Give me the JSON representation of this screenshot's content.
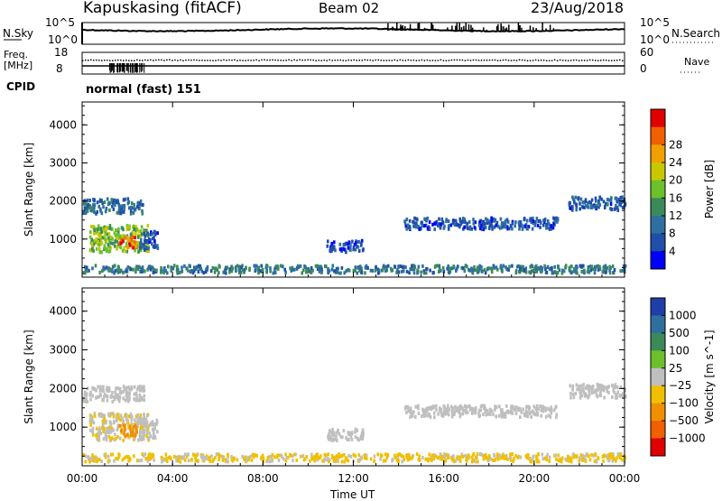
{
  "header": {
    "site": "Kapuskasing (fitACF)",
    "beam": "Beam 02",
    "date": "23/Aug/2018"
  },
  "noise_panel": {
    "left_label": "N.Sky",
    "left_max": "10^5",
    "left_min": "10^0",
    "right_label": "N.Search",
    "right_max": "10^5",
    "right_min": "10^0"
  },
  "freq_panel": {
    "left_label": "Freq.",
    "left_unit": "[MHz]",
    "left_max": "18",
    "left_min": "8",
    "right_label": "Nave",
    "right_max": "60",
    "right_min": "0"
  },
  "cpid": {
    "label": "CPID",
    "value": "normal (fast) 151"
  },
  "x_axis": {
    "label": "Time UT",
    "ticks": [
      "00:00",
      "04:00",
      "08:00",
      "12:00",
      "16:00",
      "20:00",
      "00:00"
    ],
    "range_hours": [
      0,
      24
    ]
  },
  "colors": {
    "power_scale": [
      "#0000ff",
      "#1f4fa8",
      "#2e6fa0",
      "#3c8a5a",
      "#6cc02c",
      "#c8c800",
      "#f0a000",
      "#f06000",
      "#e00000"
    ],
    "velocity_scale": [
      "#1f3fa8",
      "#2e6fa0",
      "#3c8a5a",
      "#6cc02c",
      "#bfbfbf",
      "#f0c000",
      "#f09000",
      "#f06000",
      "#e00000"
    ]
  },
  "chart_data": [
    {
      "type": "heatmap",
      "title": "Power",
      "ylabel": "Slant Range [km]",
      "xlabel": "",
      "yticks": [
        "1000",
        "2000",
        "3000",
        "4000"
      ],
      "ylim": [
        0,
        4600
      ],
      "xlim": [
        0,
        24
      ],
      "colorbar": {
        "label": "Power [dB]",
        "ticks": [
          "4",
          "8",
          "12",
          "16",
          "20",
          "24",
          "28"
        ],
        "range": [
          0,
          32
        ]
      },
      "regions": [
        {
          "x": [
            0.0,
            2.7
          ],
          "y": [
            1700,
            2100
          ],
          "value": 8
        },
        {
          "x": [
            0.3,
            2.9
          ],
          "y": [
            700,
            1400
          ],
          "value": 16
        },
        {
          "x": [
            1.6,
            2.4
          ],
          "y": [
            800,
            1100
          ],
          "value": 26
        },
        {
          "x": [
            2.5,
            3.3
          ],
          "y": [
            750,
            1250
          ],
          "value": 6
        },
        {
          "x": [
            10.8,
            12.4
          ],
          "y": [
            700,
            1000
          ],
          "value": 5
        },
        {
          "x": [
            14.2,
            21.0
          ],
          "y": [
            1300,
            1600
          ],
          "value": 6
        },
        {
          "x": [
            21.5,
            24.0
          ],
          "y": [
            1800,
            2150
          ],
          "value": 7
        },
        {
          "x": [
            0.0,
            24.0
          ],
          "y": [
            150,
            350
          ],
          "value": 10
        }
      ]
    },
    {
      "type": "heatmap",
      "title": "Velocity",
      "ylabel": "Slant Range [km]",
      "xlabel": "Time UT",
      "yticks": [
        "1000",
        "2000",
        "3000",
        "4000"
      ],
      "ylim": [
        0,
        4600
      ],
      "xlim": [
        0,
        24
      ],
      "colorbar": {
        "label": "Velocity [m s^-1]",
        "ticks": [
          "1000",
          "500",
          "100",
          "25",
          "−25",
          "−100",
          "−500",
          "−1000"
        ],
        "range": [
          -1500,
          1500
        ]
      },
      "regions": [
        {
          "x": [
            0.0,
            2.7
          ],
          "y": [
            1700,
            2100
          ],
          "value": 0
        },
        {
          "x": [
            0.3,
            2.9
          ],
          "y": [
            700,
            1400
          ],
          "value": -60
        },
        {
          "x": [
            1.6,
            2.4
          ],
          "y": [
            800,
            1100
          ],
          "value": -300
        },
        {
          "x": [
            2.5,
            3.3
          ],
          "y": [
            750,
            1250
          ],
          "value": 0
        },
        {
          "x": [
            10.8,
            12.4
          ],
          "y": [
            700,
            1000
          ],
          "value": 0
        },
        {
          "x": [
            14.2,
            21.0
          ],
          "y": [
            1300,
            1600
          ],
          "value": 0
        },
        {
          "x": [
            21.5,
            24.0
          ],
          "y": [
            1800,
            2150
          ],
          "value": -30
        },
        {
          "x": [
            0.0,
            24.0
          ],
          "y": [
            150,
            350
          ],
          "value": -80
        }
      ]
    }
  ]
}
